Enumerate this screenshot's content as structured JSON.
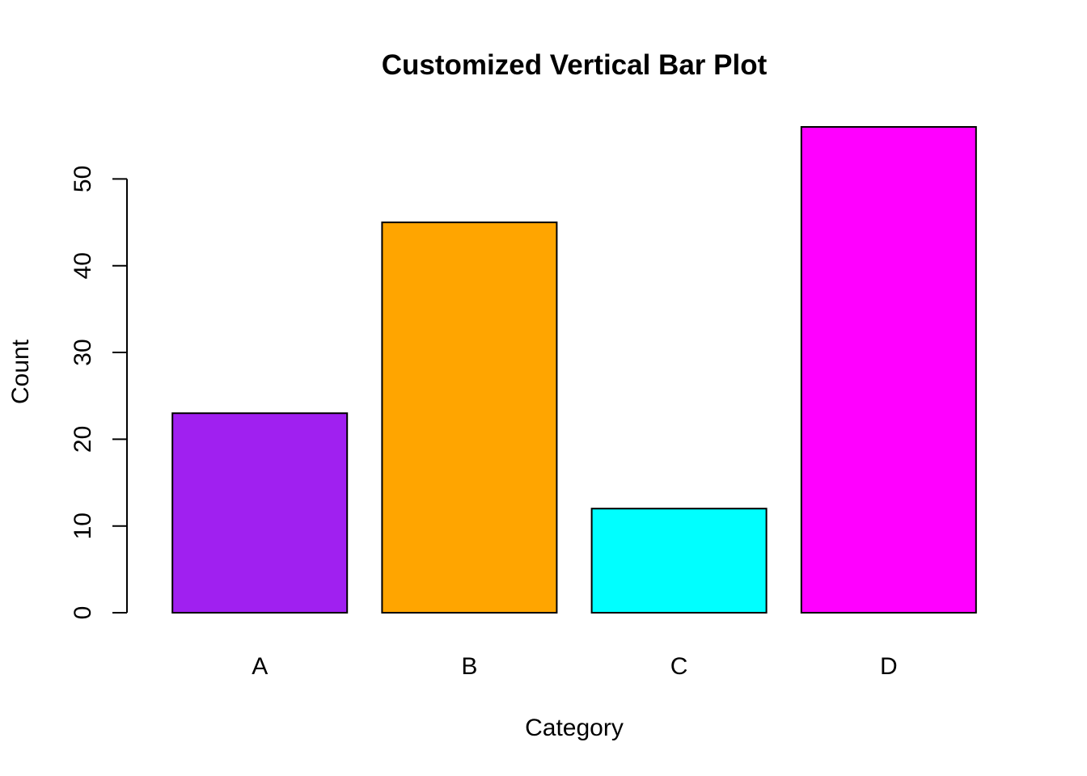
{
  "chart_data": {
    "type": "bar",
    "title": "Customized Vertical Bar Plot",
    "xlabel": "Category",
    "ylabel": "Count",
    "categories": [
      "A",
      "B",
      "C",
      "D"
    ],
    "values": [
      23,
      45,
      12,
      56
    ],
    "colors": [
      "#A020F0",
      "#FFA500",
      "#00FFFF",
      "#FF00FF"
    ],
    "ylim": [
      0,
      56
    ],
    "yticks": [
      0,
      10,
      20,
      30,
      40,
      50
    ],
    "grid": false,
    "legend": "none"
  }
}
